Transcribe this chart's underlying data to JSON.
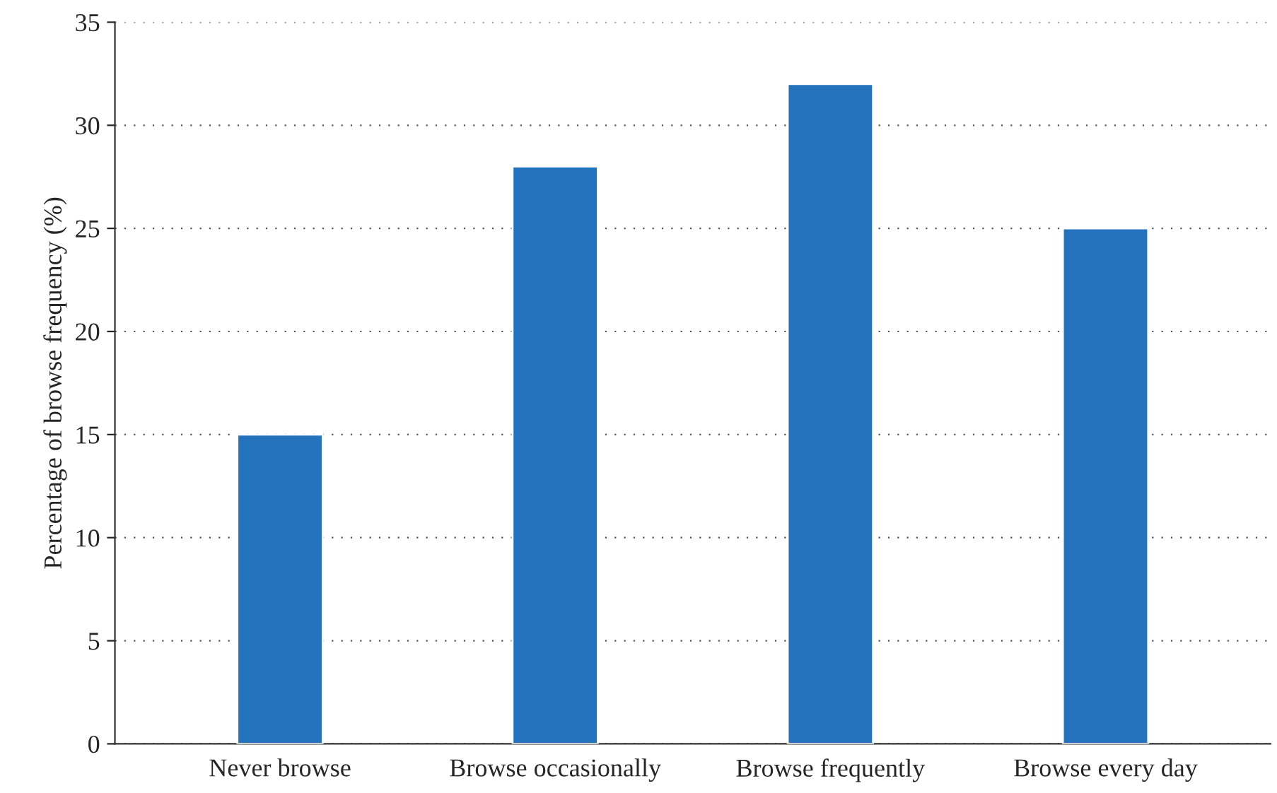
{
  "chart_data": {
    "type": "bar",
    "ylabel": "Percentage of browse frequency (%)",
    "categories": [
      "Never browse",
      "Browse occasionally",
      "Browse frequently",
      "Browse every day"
    ],
    "values": [
      15,
      28,
      32,
      25
    ],
    "color": "#2272be",
    "ylim": [
      0,
      35
    ],
    "yticks": [
      0,
      5,
      10,
      15,
      20,
      25,
      30,
      35
    ],
    "grid": "y",
    "legend": false
  }
}
